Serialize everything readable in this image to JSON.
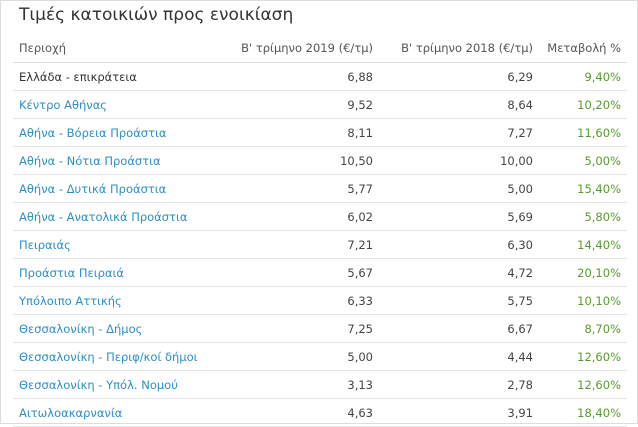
{
  "title": "Τιμές κατοικιών προς ενοικίαση",
  "colors": {
    "link": "#2b8fc3",
    "change": "#5a9a2c",
    "text": "#333333"
  },
  "table": {
    "headers": [
      "Περιοχή",
      "Β' τρίμηνο 2019 (€/τμ)",
      "Β' τρίμηνο 2018 (€/τμ)",
      "Μεταβολή %"
    ],
    "rows": [
      [
        "Ελλάδα - επικράτεια",
        "6,88",
        "6,29",
        "9,40%"
      ],
      [
        "Κέντρο Αθήνας",
        "9,52",
        "8,64",
        "10,20%"
      ],
      [
        "Αθήνα - Βόρεια Προάστια",
        "8,11",
        "7,27",
        "11,60%"
      ],
      [
        "Αθήνα - Νότια Προάστια",
        "10,50",
        "10,00",
        "5,00%"
      ],
      [
        "Αθήνα - Δυτικά Προάστια",
        "5,77",
        "5,00",
        "15,40%"
      ],
      [
        "Αθήνα - Ανατολικά Προάστια",
        "6,02",
        "5,69",
        "5,80%"
      ],
      [
        "Πειραιάς",
        "7,21",
        "6,30",
        "14,40%"
      ],
      [
        "Προάστια Πειραιά",
        "5,67",
        "4,72",
        "20,10%"
      ],
      [
        "Υπόλοιπο Αττικής",
        "6,33",
        "5,75",
        "10,10%"
      ],
      [
        "Θεσσαλονίκη - Δήμος",
        "7,25",
        "6,67",
        "8,70%"
      ],
      [
        "Θεσσαλονίκη - Περιφ/κοί δήμοι",
        "5,00",
        "4,44",
        "12,60%"
      ],
      [
        "Θεσσαλονίκη - Υπόλ. Νομού",
        "3,13",
        "2,78",
        "12,60%"
      ],
      [
        "Αιτωλοακαρνανία",
        "4,63",
        "3,91",
        "18,40%"
      ]
    ]
  }
}
